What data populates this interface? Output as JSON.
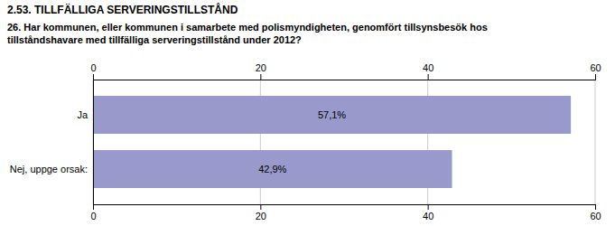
{
  "chart_data": {
    "type": "bar",
    "orientation": "horizontal",
    "title": "2.53. TILLFÄLLIGA SERVERINGSTILLSTÅND",
    "subtitle": "26. Har kommunen, eller kommunen i samarbete med polismyndigheten, genomfört tillsynsbesök hos\ntillståndshavare med tillfälliga serveringstillstånd under 2012?",
    "categories": [
      "Ja",
      "Nej, uppge orsak:"
    ],
    "values": [
      57.1,
      42.9
    ],
    "value_labels": [
      "57,1%",
      "42,9%"
    ],
    "data_labels": true,
    "color": "#9999CC",
    "xlim": [
      0,
      60
    ],
    "xticks": [
      0,
      20,
      40,
      60
    ],
    "grid": true
  }
}
